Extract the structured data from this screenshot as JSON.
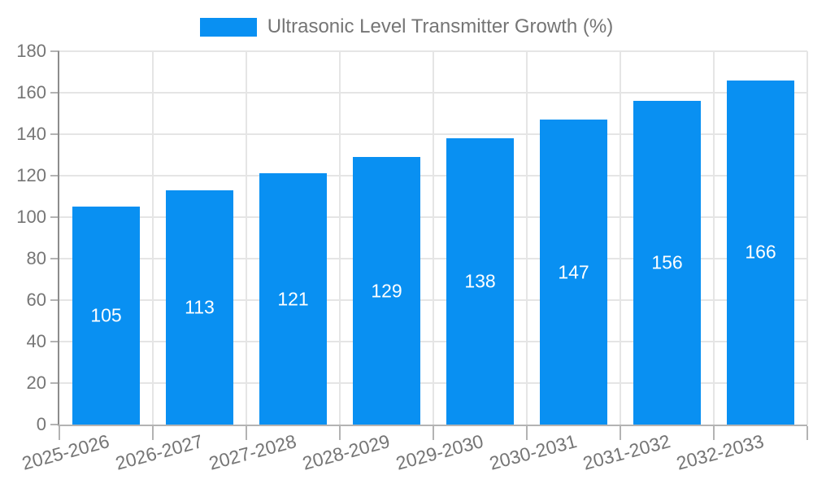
{
  "chart_data": {
    "type": "bar",
    "title": "",
    "legend": "Ultrasonic Level Transmitter Growth (%)",
    "legend_position": "top-center",
    "categories": [
      "2025-2026",
      "2026-2027",
      "2027-2028",
      "2028-2029",
      "2029-2030",
      "2030-2031",
      "2031-2032",
      "2032-2033"
    ],
    "series": [
      {
        "name": "Ultrasonic Level Transmitter Growth (%)",
        "values": [
          105,
          113,
          121,
          129,
          138,
          147,
          156,
          166
        ]
      }
    ],
    "values": [
      105,
      113,
      121,
      129,
      138,
      147,
      156,
      166
    ],
    "bar_value_labels": [
      "105",
      "113",
      "121",
      "129",
      "138",
      "147",
      "156",
      "166"
    ],
    "xlabel": "",
    "ylabel": "",
    "ylim": [
      0,
      180
    ],
    "ytick_step": 20,
    "yticks": [
      0,
      20,
      40,
      60,
      80,
      100,
      120,
      140,
      160,
      180
    ],
    "grid": true,
    "x_label_rotation_deg": -15,
    "bar_labels_inside": true,
    "colors": {
      "bar": "#0990f2",
      "grid": "#e5e5e5",
      "y_axis": "#8c8c8c",
      "x_axis": "#b3b3b3",
      "tick": "#b3b3b3",
      "label_text": "#757575",
      "bar_label": "#ffffff",
      "background": "#ffffff"
    }
  }
}
